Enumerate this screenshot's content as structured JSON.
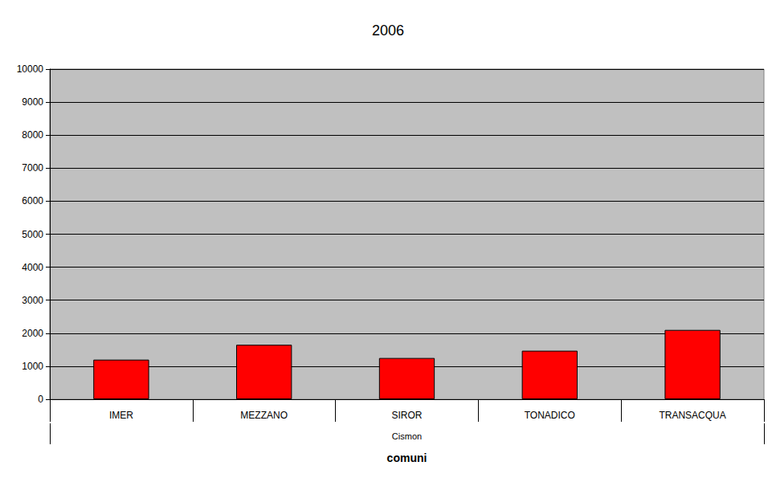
{
  "chart_data": {
    "type": "bar",
    "title": "2006",
    "categories": [
      "IMER",
      "MEZZANO",
      "SIROR",
      "TONADICO",
      "TRANSACQUA"
    ],
    "values": [
      1200,
      1650,
      1250,
      1470,
      2100
    ],
    "color": "#ff0000",
    "group_label": "Cismon",
    "xlabel": "comuni",
    "ylim": [
      0,
      10000
    ],
    "yticks": [
      0,
      1000,
      2000,
      3000,
      4000,
      5000,
      6000,
      7000,
      8000,
      9000,
      10000
    ],
    "grid": true
  }
}
